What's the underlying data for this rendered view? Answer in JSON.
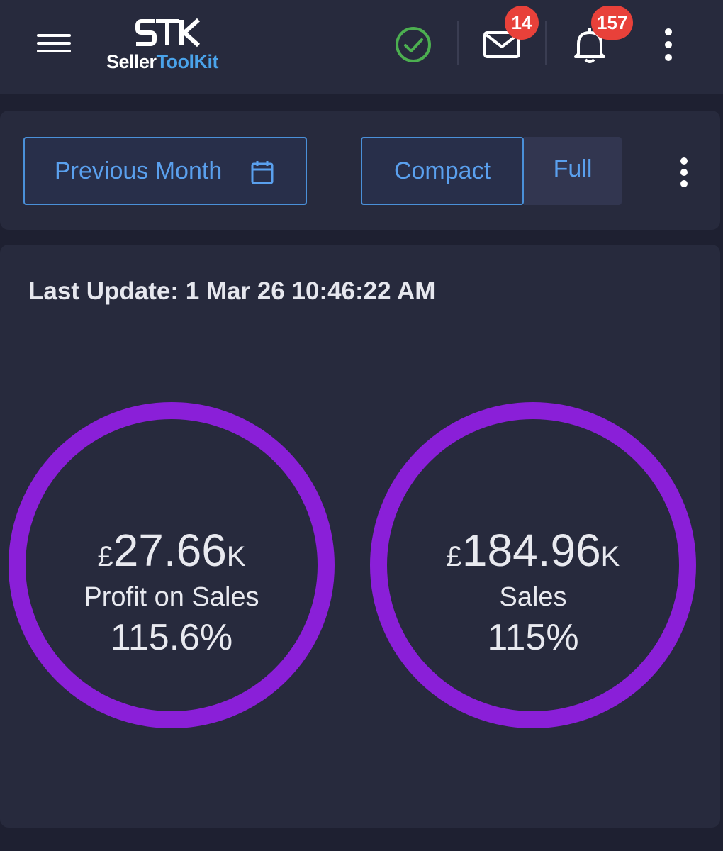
{
  "header": {
    "brand": {
      "name_part1": "Seller",
      "name_part2": "ToolKit"
    },
    "mail_badge": "14",
    "notifications_badge": "157",
    "icons": [
      "menu-icon",
      "check-circle-icon",
      "mail-icon",
      "bell-icon",
      "more-vertical-icon"
    ],
    "colors": {
      "status_ok": "#4caf50",
      "badge": "#e8413a",
      "brand_accent": "#4aa3ea"
    }
  },
  "toolbar": {
    "date_range_label": "Previous Month",
    "view_compact_label": "Compact",
    "view_full_label": "Full",
    "selected_view": "Compact",
    "colors": {
      "accent": "#5aa0ee"
    }
  },
  "dashboard": {
    "last_update": "Last Update: 1 Mar 26 10:46:22 AM",
    "ring_color": "#8a1fd8",
    "metrics": [
      {
        "currency": "£",
        "value": "27.66",
        "suffix": "K",
        "label": "Profit on Sales",
        "percent": "115.6%"
      },
      {
        "currency": "£",
        "value": "184.96",
        "suffix": "K",
        "label": "Sales",
        "percent": "115%"
      }
    ]
  }
}
